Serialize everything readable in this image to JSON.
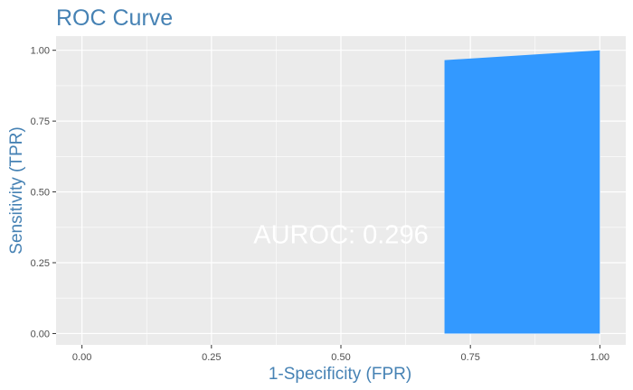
{
  "chart_data": {
    "type": "area",
    "title": "ROC Curve",
    "xlabel": "1-Specificity (FPR)",
    "ylabel": "Sensitivity (TPR)",
    "xlim": [
      -0.05,
      1.05
    ],
    "ylim": [
      -0.04,
      1.05
    ],
    "x_ticks": [
      0.0,
      0.25,
      0.5,
      0.75,
      1.0
    ],
    "y_ticks": [
      0.0,
      0.25,
      0.5,
      0.75,
      1.0
    ],
    "x_tick_labels": [
      "0.00",
      "0.25",
      "0.50",
      "0.75",
      "1.00"
    ],
    "y_tick_labels": [
      "0.00",
      "0.25",
      "0.50",
      "0.75",
      "1.00"
    ],
    "grid": true,
    "series": [
      {
        "x": [
          0.7,
          0.7,
          1.0,
          1.0
        ],
        "y": [
          0.0,
          0.965,
          1.0,
          0.0
        ],
        "color": "#3399ff"
      }
    ],
    "annotation": {
      "text": "AUROC: 0.296",
      "x": 0.5,
      "y": 0.35,
      "color": "#ffffff"
    },
    "panel_background": "#ebebeb",
    "grid_color": "#ffffff"
  }
}
